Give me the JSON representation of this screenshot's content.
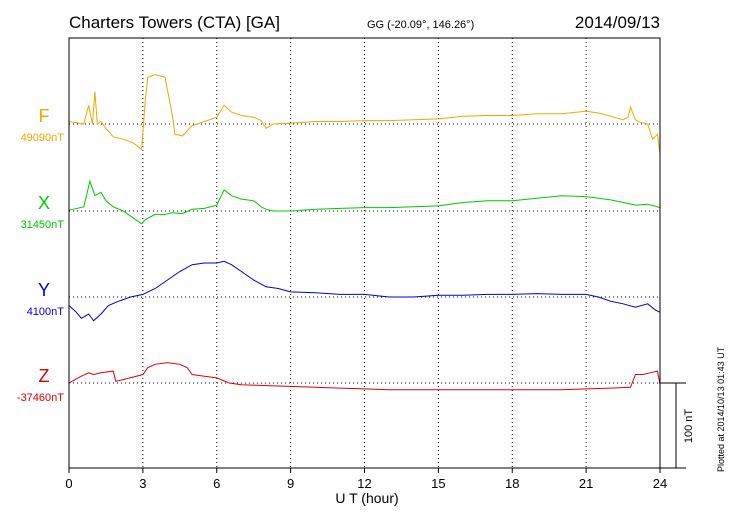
{
  "header": {
    "station": "Charters Towers (CTA)  [GA]",
    "coords": "GG (-20.09°, 146.26°)",
    "date": "2014/09/13"
  },
  "plotted_note": "Plotted at 2014/10/13 01:43 UT",
  "chart_data": {
    "type": "line",
    "xlabel": "U T (hour)",
    "xlim": [
      0,
      24
    ],
    "xticks": [
      "0",
      "3",
      "6",
      "9",
      "12",
      "15",
      "18",
      "21",
      "24"
    ],
    "grid": true,
    "scale_bar": {
      "label": "100 nT",
      "value_nT": 100
    },
    "series": [
      {
        "name": "F",
        "baseline_label": "49090nT",
        "baseline_nT": 49090,
        "color": "#f0a800",
        "x": [
          0.0,
          0.6,
          0.8,
          0.95,
          1.05,
          1.15,
          1.3,
          1.5,
          1.8,
          2.2,
          2.6,
          2.95,
          3.1,
          3.2,
          3.5,
          3.9,
          4.2,
          4.3,
          4.6,
          5.0,
          5.5,
          6.0,
          6.3,
          6.6,
          7.0,
          7.5,
          7.8,
          8.0,
          8.3,
          9.0,
          10.0,
          11.0,
          12.0,
          13.0,
          14.0,
          15.0,
          16.0,
          17.0,
          18.0,
          19.0,
          20.0,
          21.0,
          21.5,
          22.0,
          22.5,
          22.7,
          22.8,
          23.0,
          23.2,
          23.5,
          23.7,
          23.9,
          24.0
        ],
        "y": [
          3,
          0,
          22,
          0,
          38,
          0,
          3,
          -5,
          -15,
          -18,
          -22,
          -30,
          28,
          55,
          58,
          55,
          10,
          -12,
          -14,
          -2,
          3,
          8,
          22,
          14,
          10,
          8,
          4,
          -5,
          0,
          1,
          3,
          3,
          4,
          4,
          5,
          6,
          9,
          10,
          10,
          12,
          12,
          15,
          13,
          9,
          5,
          8,
          20,
          5,
          2,
          0,
          -18,
          -12,
          -35
        ]
      },
      {
        "name": "X",
        "baseline_label": "31450nT",
        "baseline_nT": 31450,
        "color": "#00c800",
        "x": [
          0.0,
          0.6,
          0.85,
          1.05,
          1.3,
          1.5,
          1.8,
          2.2,
          2.6,
          2.95,
          3.1,
          3.5,
          3.9,
          4.2,
          4.6,
          5.0,
          5.5,
          6.0,
          6.3,
          6.6,
          7.0,
          7.5,
          7.8,
          8.0,
          8.3,
          9.0,
          10.0,
          11.0,
          12.0,
          13.0,
          14.0,
          15.0,
          16.0,
          17.0,
          18.0,
          19.0,
          20.0,
          21.0,
          21.5,
          22.0,
          22.5,
          23.0,
          23.5,
          24.0
        ],
        "y": [
          1,
          5,
          35,
          18,
          22,
          12,
          5,
          0,
          -8,
          -15,
          -10,
          -4,
          -4,
          -2,
          -3,
          2,
          3,
          7,
          25,
          18,
          14,
          12,
          5,
          2,
          0,
          0,
          2,
          3,
          4,
          4,
          5,
          6,
          10,
          12,
          12,
          15,
          18,
          17,
          15,
          13,
          10,
          7,
          8,
          4
        ]
      },
      {
        "name": "Y",
        "baseline_label": "4100nT",
        "baseline_nT": 4100,
        "color": "#0000d0",
        "x": [
          0.0,
          0.3,
          0.5,
          0.8,
          1.0,
          1.3,
          1.6,
          2.0,
          2.5,
          3.0,
          3.5,
          4.0,
          4.5,
          5.0,
          5.5,
          6.0,
          6.3,
          6.6,
          7.0,
          7.5,
          8.0,
          8.5,
          9.0,
          10.0,
          11.0,
          12.0,
          13.0,
          14.0,
          15.0,
          16.0,
          17.0,
          18.0,
          19.0,
          20.0,
          21.0,
          21.5,
          22.0,
          22.5,
          23.0,
          23.5,
          23.8,
          24.0
        ],
        "y": [
          -10,
          -18,
          -25,
          -20,
          -28,
          -20,
          -10,
          -5,
          0,
          3,
          10,
          20,
          30,
          38,
          40,
          40,
          42,
          38,
          30,
          20,
          12,
          10,
          6,
          5,
          3,
          3,
          0,
          0,
          2,
          2,
          3,
          3,
          4,
          3,
          3,
          0,
          -5,
          -8,
          -12,
          -8,
          -15,
          -18
        ]
      },
      {
        "name": "Z",
        "baseline_label": "-37460nT",
        "baseline_nT": -37460,
        "color": "#e00000",
        "x": [
          0.0,
          0.5,
          0.8,
          1.0,
          1.3,
          1.8,
          1.9,
          2.2,
          2.6,
          3.0,
          3.2,
          3.5,
          4.0,
          4.5,
          4.8,
          5.0,
          5.5,
          6.0,
          6.5,
          7.0,
          8.0,
          9.0,
          10.0,
          11.0,
          12.0,
          13.0,
          14.0,
          15.0,
          16.0,
          17.0,
          18.0,
          19.0,
          20.0,
          21.0,
          22.0,
          22.8,
          23.0,
          23.3,
          23.6,
          23.9,
          24.0
        ],
        "y": [
          0,
          8,
          12,
          10,
          12,
          14,
          2,
          4,
          7,
          10,
          18,
          22,
          24,
          22,
          18,
          10,
          8,
          6,
          0,
          -2,
          -3,
          -4,
          -5,
          -6,
          -7,
          -8,
          -8,
          -8,
          -8,
          -8,
          -8,
          -8,
          -8,
          -7,
          -6,
          -5,
          10,
          10,
          12,
          14,
          -2
        ]
      }
    ]
  }
}
